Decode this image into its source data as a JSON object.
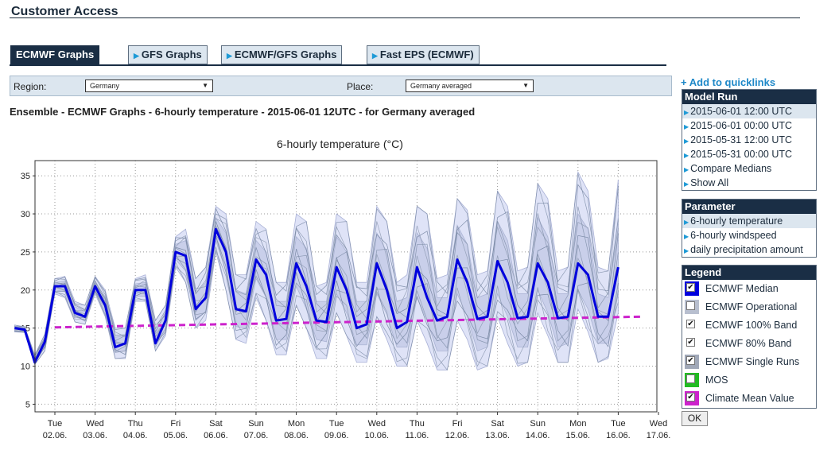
{
  "page": {
    "title": "Customer Access"
  },
  "tabs": [
    {
      "label": "ECMWF Graphs",
      "active": true
    },
    {
      "label": "GFS Graphs",
      "active": false
    },
    {
      "label": "ECMWF/GFS Graphs",
      "active": false
    },
    {
      "label": "Fast EPS (ECMWF)",
      "active": false
    }
  ],
  "selectors": {
    "region_label": "Region:",
    "region_value": "Germany",
    "place_label": "Place:",
    "place_value": "Germany averaged"
  },
  "heading": "Ensemble - ECMWF Graphs - 6-hourly temperature - 2015-06-01 12UTC - for Germany averaged",
  "quicklink": "Add to quicklinks",
  "model_run": {
    "title": "Model Run",
    "items": [
      "2015-06-01 12:00 UTC",
      "2015-06-01 00:00 UTC",
      "2015-05-31 12:00 UTC",
      "2015-05-31 00:00 UTC",
      "Compare Medians",
      "Show All"
    ],
    "selected": 0
  },
  "parameter": {
    "title": "Parameter",
    "items": [
      "6-hourly temperature",
      "6-hourly windspeed",
      "daily precipitation amount"
    ],
    "selected": 0
  },
  "legend": {
    "title": "Legend",
    "items": [
      {
        "label": "ECMWF Median",
        "color": "#0000dd",
        "checked": true
      },
      {
        "label": "ECMWF Operational",
        "color": "#b8bfcf",
        "checked": false
      },
      {
        "label": "ECMWF 100% Band",
        "color": "#ffffff",
        "checked": true
      },
      {
        "label": "ECMWF 80% Band",
        "color": "#ffffff",
        "checked": true
      },
      {
        "label": "ECMWF Single Runs",
        "color": "#a0a8b8",
        "checked": true
      },
      {
        "label": "MOS",
        "color": "#22bb22",
        "checked": false
      },
      {
        "label": "Climate Mean Value",
        "color": "#cc22cc",
        "checked": true
      }
    ],
    "ok_label": "OK"
  },
  "chart_data": {
    "type": "line",
    "title": "6-hourly temperature (°C)",
    "ylim": [
      4,
      37
    ],
    "yticks": [
      5,
      10,
      15,
      20,
      25,
      30,
      35
    ],
    "x_day_labels": [
      {
        "day": "Tue",
        "date": "02.06."
      },
      {
        "day": "Wed",
        "date": "03.06."
      },
      {
        "day": "Thu",
        "date": "04.06."
      },
      {
        "day": "Fri",
        "date": "05.06."
      },
      {
        "day": "Sat",
        "date": "06.06."
      },
      {
        "day": "Sun",
        "date": "07.06."
      },
      {
        "day": "Mon",
        "date": "08.06."
      },
      {
        "day": "Tue",
        "date": "09.06."
      },
      {
        "day": "Wed",
        "date": "10.06."
      },
      {
        "day": "Thu",
        "date": "11.06."
      },
      {
        "day": "Fri",
        "date": "12.06."
      },
      {
        "day": "Sat",
        "date": "13.06."
      },
      {
        "day": "Sun",
        "date": "14.06."
      },
      {
        "day": "Mon",
        "date": "15.06."
      },
      {
        "day": "Tue",
        "date": "16.06."
      },
      {
        "day": "Wed",
        "date": "17.06."
      }
    ],
    "median": [
      15.0,
      14.8,
      10.5,
      13.2,
      20.5,
      20.5,
      17.0,
      16.5,
      20.5,
      18.0,
      12.5,
      13.0,
      20.0,
      20.0,
      13.0,
      16.0,
      25.0,
      24.5,
      17.5,
      19.0,
      28.0,
      25.0,
      17.5,
      17.2,
      24.0,
      22.0,
      16.0,
      16.2,
      23.5,
      20.5,
      16.0,
      15.8,
      23.0,
      20.0,
      15.0,
      15.5,
      23.5,
      20.0,
      15.0,
      15.8,
      23.0,
      19.0,
      16.0,
      16.5,
      24.0,
      21.0,
      16.2,
      16.5,
      23.8,
      21.0,
      16.3,
      16.5,
      23.5,
      21.0,
      16.3,
      16.5,
      23.5,
      22.0,
      16.5,
      16.5,
      23.0
    ],
    "band100_upper": [
      15.4,
      15.2,
      11.5,
      14.2,
      21.5,
      21.8,
      18.5,
      18.0,
      21.8,
      20.0,
      15.0,
      15.0,
      21.5,
      22.0,
      16.0,
      18.0,
      27.0,
      28.0,
      21.5,
      23.0,
      31.0,
      30.0,
      22.0,
      22.0,
      29.0,
      28.0,
      21.0,
      21.0,
      30.0,
      29.0,
      20.5,
      21.0,
      30.0,
      29.0,
      21.0,
      21.0,
      31.0,
      29.0,
      21.0,
      22.0,
      31.0,
      30.0,
      21.5,
      22.0,
      32.0,
      30.5,
      22.0,
      22.5,
      33.0,
      31.0,
      22.5,
      23.0,
      34.0,
      32.0,
      22.5,
      23.0,
      35.5,
      33.0,
      23.0,
      22.5,
      34.5
    ],
    "band100_lower": [
      14.5,
      14.4,
      10.2,
      12.0,
      19.5,
      19.0,
      15.8,
      15.5,
      19.5,
      16.5,
      11.0,
      11.0,
      18.5,
      18.5,
      12.0,
      14.0,
      23.0,
      21.0,
      15.0,
      16.0,
      25.0,
      20.0,
      13.5,
      13.0,
      19.0,
      16.0,
      11.5,
      11.5,
      18.0,
      15.0,
      11.0,
      11.0,
      17.0,
      14.0,
      10.5,
      10.5,
      16.5,
      13.5,
      10.0,
      10.0,
      16.0,
      13.0,
      9.5,
      9.5,
      16.0,
      13.5,
      9.5,
      10.0,
      16.5,
      13.0,
      10.0,
      10.5,
      17.0,
      14.0,
      10.5,
      10.5,
      17.5,
      14.5,
      10.5,
      11.0,
      17.0
    ],
    "band80_upper": [
      15.2,
      15.0,
      11.0,
      13.8,
      21.0,
      21.2,
      17.8,
      17.2,
      21.2,
      19.0,
      13.8,
      14.0,
      20.8,
      21.0,
      14.5,
      17.0,
      26.0,
      26.5,
      19.5,
      21.0,
      29.5,
      27.5,
      20.0,
      19.5,
      26.5,
      25.0,
      18.5,
      18.5,
      27.0,
      25.5,
      18.5,
      18.5,
      27.0,
      25.0,
      18.5,
      18.5,
      27.5,
      25.0,
      18.5,
      19.0,
      27.5,
      25.5,
      19.0,
      19.0,
      28.5,
      26.0,
      19.0,
      19.5,
      29.0,
      26.5,
      19.5,
      19.5,
      29.5,
      27.0,
      19.5,
      19.5,
      30.0,
      28.0,
      19.5,
      19.0,
      29.5
    ],
    "band80_lower": [
      14.8,
      14.6,
      10.4,
      12.6,
      20.0,
      19.8,
      16.5,
      16.0,
      20.0,
      17.2,
      11.8,
      12.0,
      19.2,
      19.2,
      12.5,
      15.0,
      24.0,
      22.5,
      16.0,
      17.2,
      26.5,
      22.5,
      15.2,
      15.0,
      21.5,
      19.0,
      13.5,
      13.5,
      20.5,
      17.5,
      13.5,
      13.2,
      19.5,
      17.0,
      12.8,
      12.8,
      19.5,
      16.8,
      12.5,
      12.5,
      19.0,
      16.0,
      12.0,
      12.0,
      19.5,
      16.5,
      12.0,
      12.5,
      19.5,
      16.5,
      12.5,
      12.5,
      20.0,
      17.0,
      12.5,
      13.0,
      20.0,
      17.5,
      13.0,
      13.0,
      19.5
    ],
    "climate_start": 15.1,
    "climate_end": 16.5
  }
}
